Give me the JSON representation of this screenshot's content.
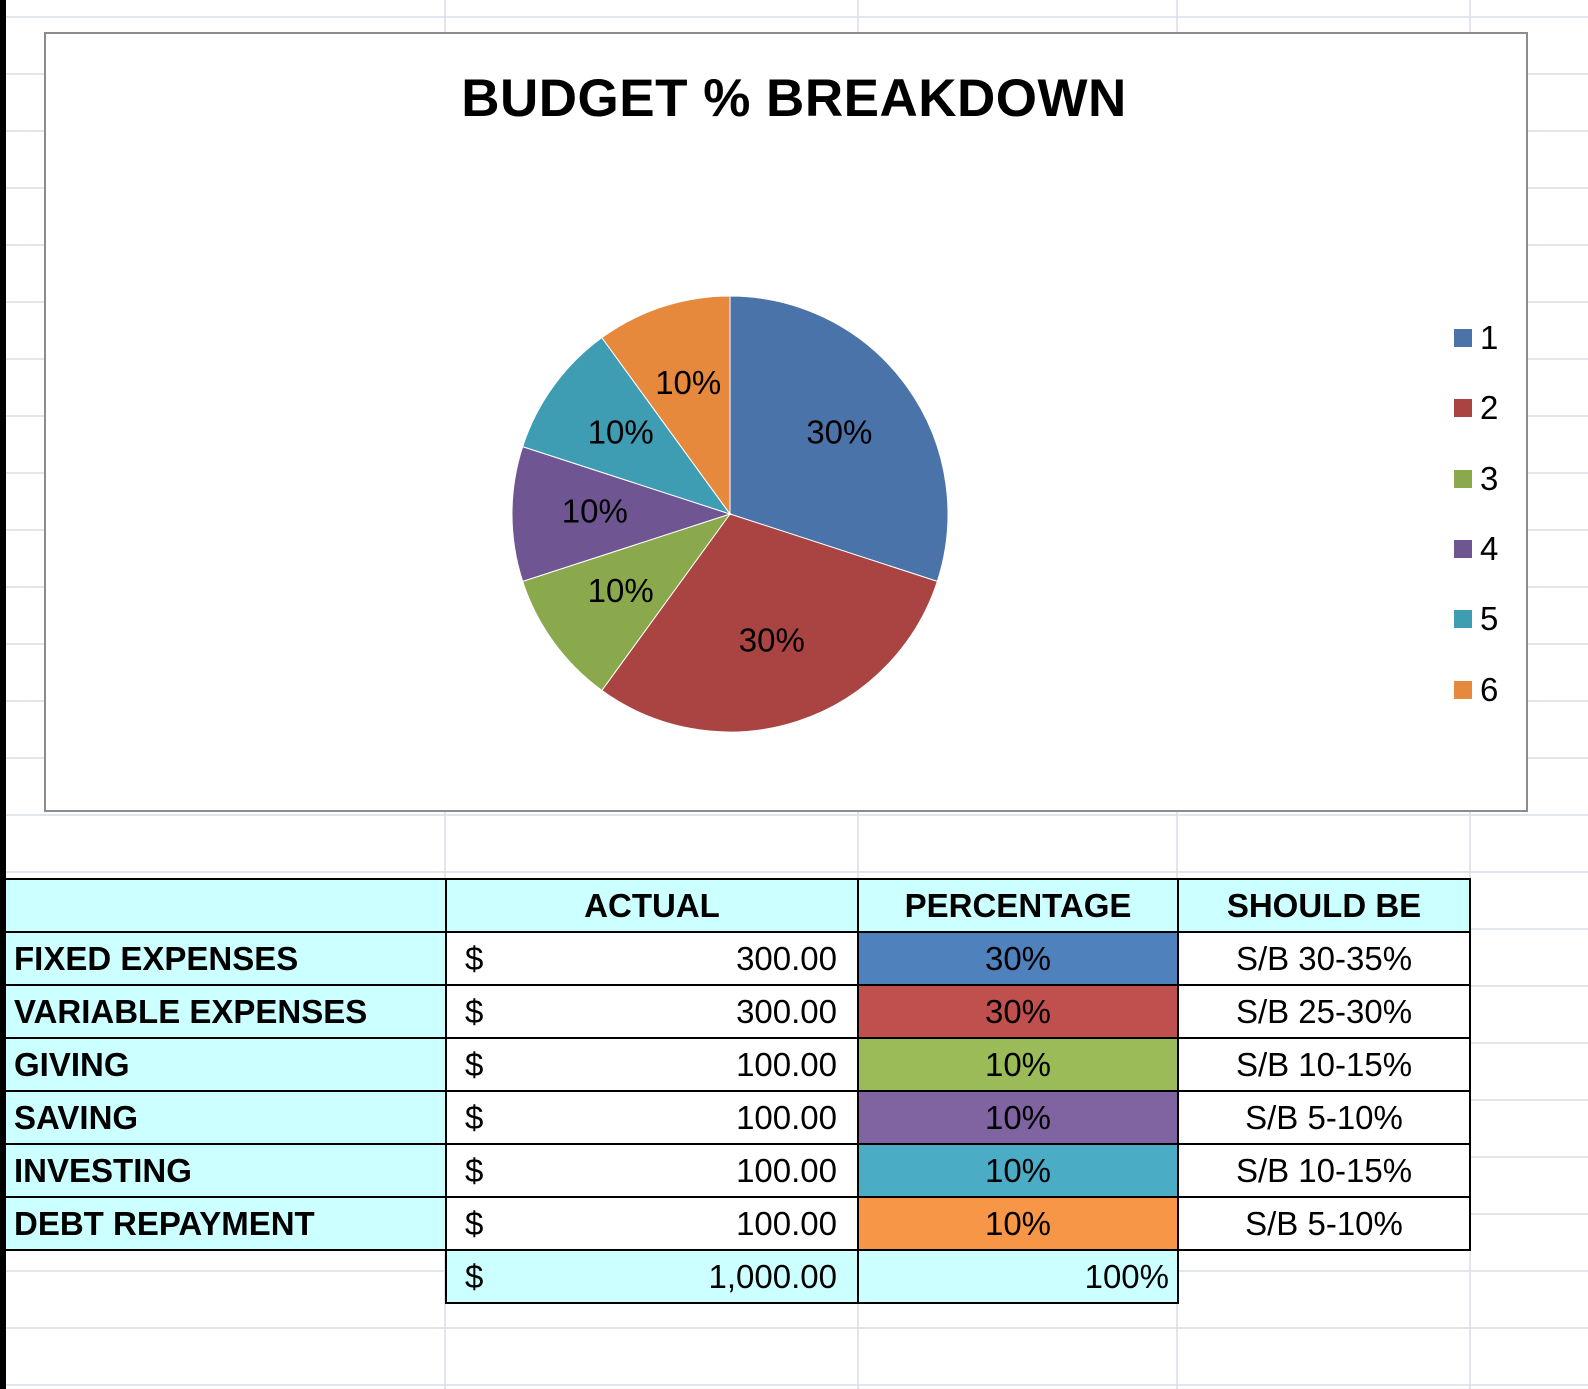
{
  "chart_data": {
    "type": "pie",
    "title": "BUDGET % BREAKDOWN",
    "categories": [
      "1",
      "2",
      "3",
      "4",
      "5",
      "6"
    ],
    "values": [
      30,
      30,
      10,
      10,
      10,
      10
    ],
    "data_labels": [
      "30%",
      "30%",
      "10%",
      "10%",
      "10%",
      "10%"
    ],
    "colors": [
      "#4a73aa",
      "#a94442",
      "#8aa84c",
      "#6f5592",
      "#3e9db3",
      "#e6893c"
    ],
    "legend_position": "right"
  },
  "table": {
    "headers": [
      "",
      "ACTUAL",
      "PERCENTAGE",
      "SHOULD BE"
    ],
    "rows": [
      {
        "label": "FIXED EXPENSES",
        "currency": "$",
        "amount": "300.00",
        "percentage": "30%",
        "should_be": "S/B 30-35%",
        "color": "#4f81bd"
      },
      {
        "label": "VARIABLE EXPENSES",
        "currency": "$",
        "amount": "300.00",
        "percentage": "30%",
        "should_be": "S/B 25-30%",
        "color": "#c0504d"
      },
      {
        "label": "GIVING",
        "currency": "$",
        "amount": "100.00",
        "percentage": "10%",
        "should_be": "S/B 10-15%",
        "color": "#9bbb59"
      },
      {
        "label": "SAVING",
        "currency": "$",
        "amount": "100.00",
        "percentage": "10%",
        "should_be": "S/B 5-10%",
        "color": "#8064a2"
      },
      {
        "label": "INVESTING",
        "currency": "$",
        "amount": "100.00",
        "percentage": "10%",
        "should_be": "S/B 10-15%",
        "color": "#4bacc6"
      },
      {
        "label": "DEBT REPAYMENT",
        "currency": "$",
        "amount": "100.00",
        "percentage": "10%",
        "should_be": "S/B 5-10%",
        "color": "#f79646"
      }
    ],
    "total": {
      "currency": "$",
      "amount": "1,000.00",
      "percentage": "100%"
    }
  }
}
